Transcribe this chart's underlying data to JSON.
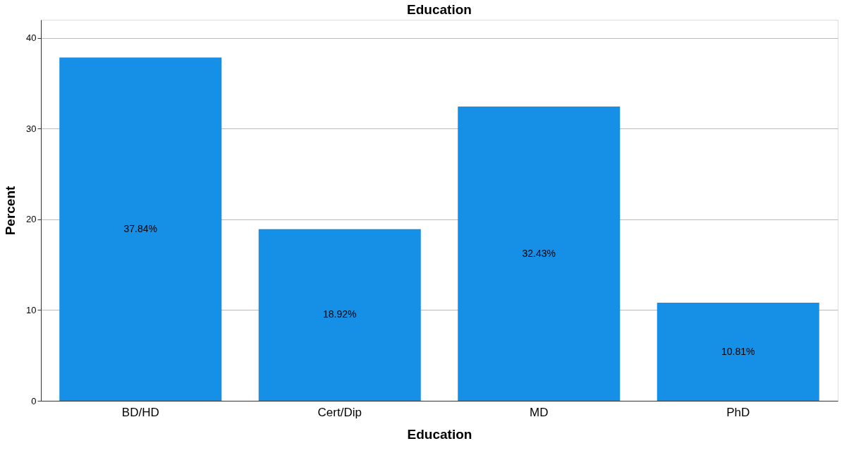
{
  "chart_data": {
    "type": "bar",
    "title": "Education",
    "xlabel": "Education",
    "ylabel": "Percent",
    "categories": [
      "BD/HD",
      "Cert/Dip",
      "MD",
      "PhD"
    ],
    "values": [
      37.84,
      18.92,
      32.43,
      10.81
    ],
    "value_labels": [
      "37.84%",
      "18.92%",
      "32.43%",
      "10.81%"
    ],
    "color": "#1590e6",
    "ylim": [
      0,
      42
    ],
    "yticks": [
      0,
      10,
      20,
      30,
      40
    ],
    "grid": "y"
  }
}
